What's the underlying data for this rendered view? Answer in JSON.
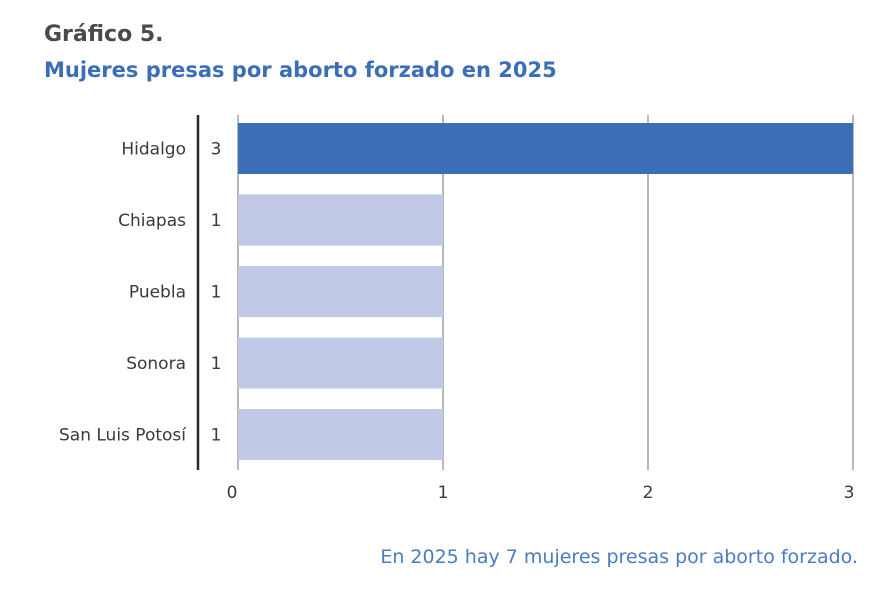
{
  "chart_data": {
    "type": "bar",
    "orientation": "horizontal",
    "title": "Gráfico 5.",
    "subtitle": "Mujeres presas por aborto forzado en 2025",
    "categories": [
      "Hidalgo",
      "Chiapas",
      "Puebla",
      "Sonora",
      "San Luis Potosí"
    ],
    "values": [
      3,
      1,
      1,
      1,
      1
    ],
    "value_labels": [
      "3",
      "1",
      "1",
      "1",
      "1"
    ],
    "xlim": [
      0,
      3
    ],
    "xticks": [
      "0",
      "1",
      "2",
      "3"
    ],
    "grid": true,
    "footnote": "En 2025 hay 7 mujeres presas por aborto forzado."
  },
  "colors": {
    "highlight_bar": "#3a6fb8",
    "bar": "#c1c9e6",
    "subtitle": "#3a6fb8",
    "footnote": "#4a7cc0",
    "grid": "#8a8a8a",
    "axis": "#2a2a2a"
  }
}
